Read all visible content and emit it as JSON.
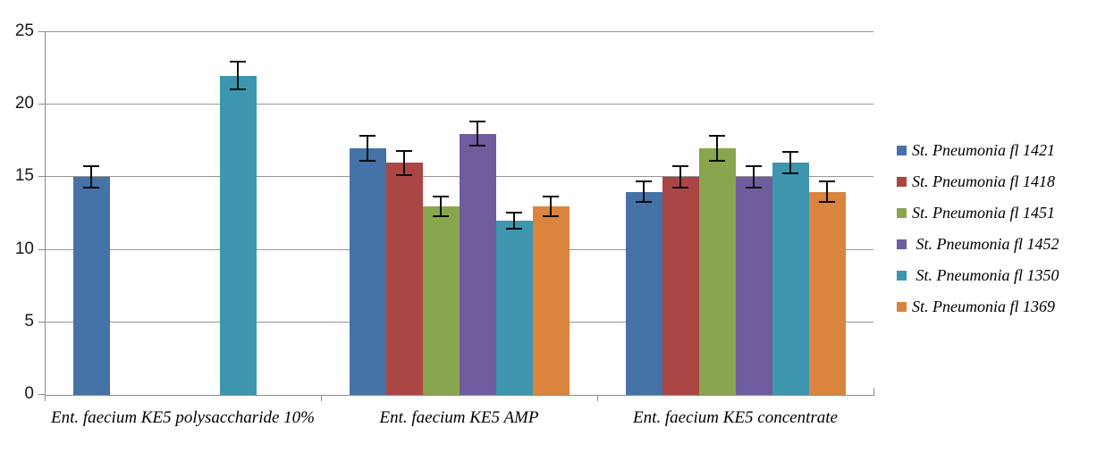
{
  "chart_data": {
    "type": "bar",
    "title": "",
    "xlabel": "",
    "ylabel": "",
    "categories": [
      "Ent. faecium KE5 polysaccharide 10%",
      "Ent. faecium KE5 AMP",
      "Ent. faecium KE5 concentrate"
    ],
    "series": [
      {
        "name": "St. Pneumonia fl 1421",
        "color": "#4572A7",
        "values": [
          15,
          17,
          14
        ],
        "errors": [
          0.8,
          0.9,
          0.75
        ]
      },
      {
        "name": "St. Pneumonia fl 1418",
        "color": "#AA4643",
        "values": [
          0,
          16,
          15
        ],
        "errors": [
          0,
          0.9,
          0.8
        ]
      },
      {
        "name": "St. Pneumonia fl 1451",
        "color": "#89A54E",
        "values": [
          0,
          13,
          17
        ],
        "errors": [
          0,
          0.75,
          0.9
        ]
      },
      {
        "name": " St. Pneumonia fl 1452",
        "color": "#6E5C9E",
        "values": [
          0,
          18,
          15
        ],
        "errors": [
          0,
          0.9,
          0.8
        ]
      },
      {
        "name": " St. Pneumonia fl 1350",
        "color": "#3D96AE",
        "values": [
          22,
          12,
          16
        ],
        "errors": [
          1.0,
          0.6,
          0.8
        ]
      },
      {
        "name": "St. Pneumonia fl 1369",
        "color": "#DB843D",
        "values": [
          0,
          13,
          14
        ],
        "errors": [
          0,
          0.75,
          0.75
        ]
      }
    ],
    "y_axis": {
      "min": 0,
      "max": 25,
      "step": 5,
      "tick_labels": [
        "0",
        "5",
        "10",
        "15",
        "20",
        "25"
      ]
    },
    "legend_position": "right",
    "grid": true,
    "error_bars": true
  },
  "style": {
    "background": "#FFFFFF",
    "grid_color": "#969696",
    "axis_color": "#8C8C8C",
    "error_bar_color": "#0d0d0d",
    "text_color": "#000000"
  }
}
